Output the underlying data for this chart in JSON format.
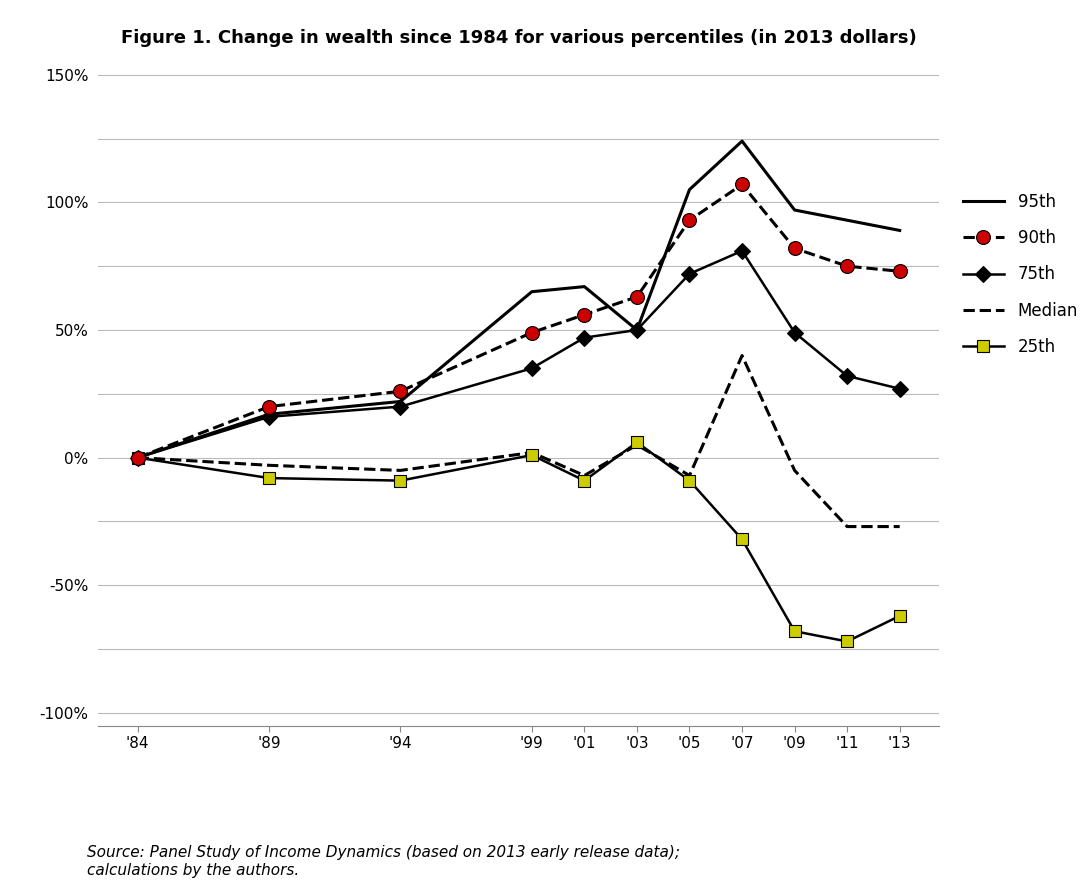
{
  "title": "Figure 1. Change in wealth since 1984 for various percentiles (in 2013 dollars)",
  "source_text": "Source: Panel Study of Income Dynamics (based on 2013 early release data);\ncalculations by the authors.",
  "x_labels": [
    "'84",
    "'89",
    "'94",
    "'99",
    "'01",
    "'03",
    "'05",
    "'07",
    "'09",
    "'11",
    "'13"
  ],
  "x_values": [
    1984,
    1989,
    1994,
    1999,
    2001,
    2003,
    2005,
    2007,
    2009,
    2011,
    2013
  ],
  "series": {
    "95th": {
      "values": [
        0,
        17,
        22,
        65,
        67,
        50,
        105,
        124,
        97,
        93,
        89
      ],
      "color": "#000000",
      "linestyle": "solid",
      "linewidth": 2.2,
      "marker": null,
      "marker_color": null,
      "marker_size": null,
      "label": "95th",
      "zorder": 4
    },
    "90th": {
      "values": [
        0,
        20,
        26,
        49,
        56,
        63,
        93,
        107,
        82,
        75,
        73
      ],
      "color": "#000000",
      "linestyle": "dashed",
      "linewidth": 2.2,
      "marker": "o",
      "marker_color": "#cc0000",
      "marker_size": 10,
      "label": "90th",
      "zorder": 5
    },
    "75th": {
      "values": [
        0,
        16,
        20,
        35,
        47,
        50,
        72,
        81,
        49,
        32,
        27
      ],
      "color": "#000000",
      "linestyle": "solid",
      "linewidth": 1.8,
      "marker": "D",
      "marker_color": "#000000",
      "marker_size": 8,
      "label": "75th",
      "zorder": 4
    },
    "Median": {
      "values": [
        0,
        -3,
        -5,
        2,
        -7,
        5,
        -7,
        40,
        -5,
        -27,
        -27
      ],
      "color": "#000000",
      "linestyle": "dashed",
      "linewidth": 2.2,
      "marker": null,
      "marker_color": null,
      "marker_size": null,
      "label": "Median",
      "zorder": 3
    },
    "25th": {
      "values": [
        0,
        -8,
        -9,
        1,
        -9,
        6,
        -9,
        -32,
        -68,
        -72,
        -62
      ],
      "color": "#000000",
      "linestyle": "solid",
      "linewidth": 1.8,
      "marker": "s",
      "marker_color": "#cccc00",
      "marker_size": 9,
      "label": "25th",
      "zorder": 4
    }
  },
  "ylim": [
    -105,
    155
  ],
  "yticks": [
    -100,
    -75,
    -50,
    -25,
    0,
    25,
    50,
    75,
    100,
    125,
    150
  ],
  "ytick_labels": [
    "-100%",
    "",
    "-50%",
    "",
    "0%",
    "",
    "50%",
    "",
    "100%",
    "",
    "150%"
  ],
  "background_color": "#ffffff",
  "grid_color": "#bbbbbb",
  "title_fontsize": 13,
  "axis_fontsize": 11,
  "source_fontsize": 11,
  "legend_entries": [
    "95th",
    "90th",
    "75th",
    "Median",
    "25th"
  ]
}
